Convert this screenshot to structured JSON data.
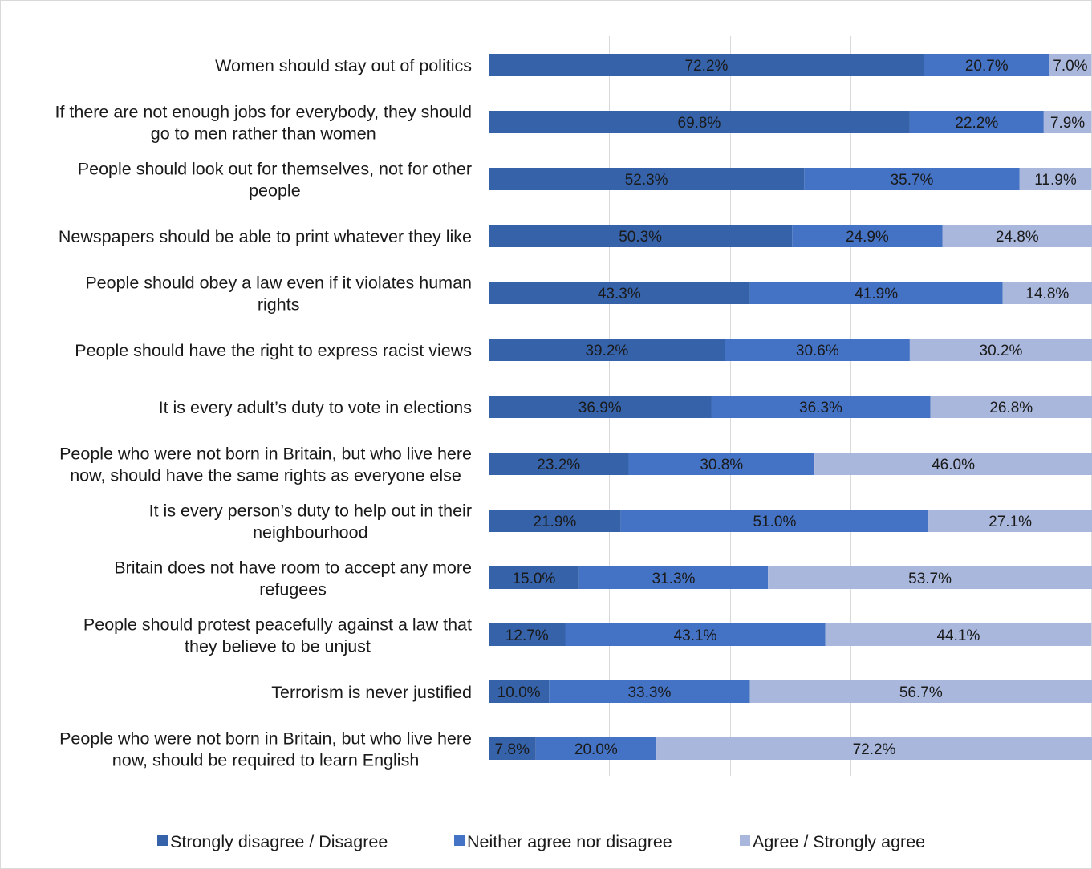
{
  "chart_data": {
    "type": "bar",
    "orientation": "horizontal",
    "stacked": true,
    "percent_stacked": true,
    "categories": [
      "Women should stay out of politics",
      "If there are not enough jobs for everybody, they should go to men rather than women",
      "People should look out for themselves, not for other people",
      "Newspapers should be able to print whatever they like",
      "People should obey a law even if it violates human rights",
      "People should have the right to express racist views",
      "It is every adult’s duty to vote in elections",
      "People who were not born in Britain, but who live here now, should have the same rights as everyone else",
      "It is every person’s duty to help out in their neighbourhood",
      "Britain does not have room to accept any more refugees",
      "People should protest peacefully against a law that they believe to be unjust",
      "Terrorism is never justified",
      "People who were not born in Britain, but who live here now, should be required to learn English"
    ],
    "category_lines": [
      [
        "Women should stay out of politics"
      ],
      [
        "If there are not enough jobs for everybody, they should",
        "go to men rather than women"
      ],
      [
        "People should look out for themselves, not for other",
        "people"
      ],
      [
        "Newspapers should be able to print whatever they like"
      ],
      [
        "People should obey a law even if it violates human",
        "rights"
      ],
      [
        "People should have the right to express racist views"
      ],
      [
        "It is every adult’s duty to vote in elections"
      ],
      [
        "People who were not born in Britain, but who live here",
        "now, should have the same rights as everyone else"
      ],
      [
        "It is every person’s duty to help out in their",
        "neighbourhood"
      ],
      [
        "Britain does not have room to accept any more",
        "refugees"
      ],
      [
        "People should protest peacefully against a law that",
        "they believe to be unjust"
      ],
      [
        "Terrorism is never justified"
      ],
      [
        "People who were not born in Britain, but who live here",
        "now, should be required to learn English"
      ]
    ],
    "series": [
      {
        "name": "Strongly disagree / Disagree",
        "color": "#3562a8",
        "values": [
          72.2,
          69.8,
          52.3,
          50.3,
          43.3,
          39.2,
          36.9,
          23.2,
          21.9,
          15.0,
          12.7,
          10.0,
          7.8
        ]
      },
      {
        "name": "Neither agree nor disagree",
        "color": "#4472c4",
        "values": [
          20.7,
          22.2,
          35.7,
          24.9,
          41.9,
          30.6,
          36.3,
          30.8,
          51.0,
          31.3,
          43.1,
          33.3,
          20.0
        ]
      },
      {
        "name": "Agree / Strongly agree",
        "color": "#a9b7dc",
        "values": [
          7.0,
          7.9,
          11.9,
          24.8,
          14.8,
          30.2,
          26.8,
          46.0,
          27.1,
          53.7,
          44.1,
          56.7,
          72.2
        ]
      }
    ],
    "value_format": "percent_1dp",
    "xlim": [
      0,
      100
    ],
    "grid": true,
    "legend_position": "bottom"
  }
}
